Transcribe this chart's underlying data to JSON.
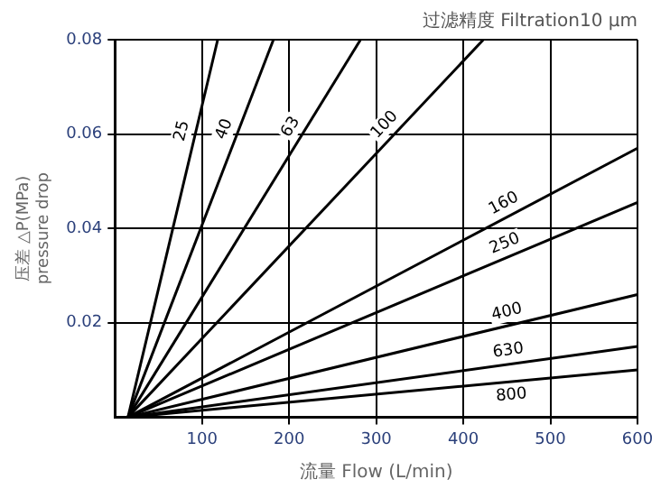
{
  "chart_data": {
    "type": "line",
    "title": "过滤精度 Filtration10 μm",
    "xlabel": "流量 Flow (L/min)",
    "ylabel": "压差 △P(MPa)\npressure drop",
    "series": [
      {
        "name": "25",
        "color": "#000000",
        "x": [
          15,
          118
        ],
        "values": [
          0,
          0.08
        ]
      },
      {
        "name": "40",
        "color": "#000000",
        "x": [
          15,
          182
        ],
        "values": [
          0,
          0.08
        ]
      },
      {
        "name": "63",
        "color": "#000000",
        "x": [
          15,
          282
        ],
        "values": [
          0,
          0.08
        ]
      },
      {
        "name": "100",
        "color": "#000000",
        "x": [
          15,
          423
        ],
        "values": [
          0,
          0.08
        ]
      },
      {
        "name": "160",
        "color": "#000000",
        "x": [
          15,
          600
        ],
        "values": [
          0,
          0.057
        ]
      },
      {
        "name": "250",
        "color": "#000000",
        "x": [
          15,
          600
        ],
        "values": [
          0,
          0.0455
        ]
      },
      {
        "name": "400",
        "color": "#000000",
        "x": [
          15,
          600
        ],
        "values": [
          0,
          0.026
        ]
      },
      {
        "name": "630",
        "color": "#000000",
        "x": [
          15,
          600
        ],
        "values": [
          0,
          0.015
        ]
      },
      {
        "name": "800",
        "color": "#000000",
        "x": [
          15,
          600
        ],
        "values": [
          0,
          0.01
        ]
      }
    ],
    "xlim": [
      0,
      600
    ],
    "xticks": [
      100,
      200,
      300,
      400,
      500,
      600
    ],
    "ylim": [
      0,
      0.08
    ],
    "yticks": [
      0.02,
      0.04,
      0.06,
      0.08
    ],
    "grid": true,
    "legend": false,
    "marker": "none",
    "line_style": "solid"
  }
}
